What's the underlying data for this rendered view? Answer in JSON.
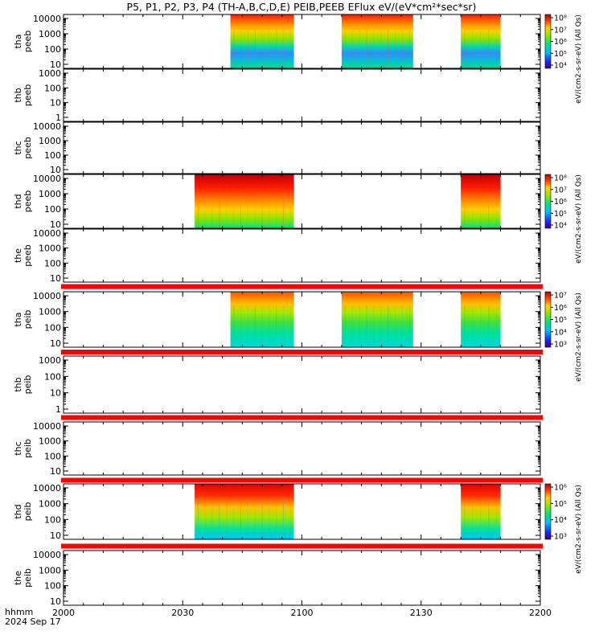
{
  "title": "P5, P1, P2, P3, P4 (TH-A,B,C,D,E) PEIB,PEEB EFlux eV/(eV*cm²*sec*sr)",
  "colors": {
    "background": "#ffffff",
    "axis": "#000000",
    "separator": "#ff0000",
    "spectrum_scale": [
      "#7a0a8a",
      "#1a1aff",
      "#00bfff",
      "#00e08a",
      "#8ae600",
      "#ffd000",
      "#ff7a00",
      "#ff0000",
      "#a40000"
    ]
  },
  "chart_data": {
    "type": "heatmap",
    "x_axis": {
      "label_time": "hhmm",
      "label_date": "2024 Sep 17",
      "range": [
        "2000",
        "2200"
      ],
      "ticks": [
        "2000",
        "2030",
        "2100",
        "2130",
        "2200"
      ]
    },
    "panels": [
      {
        "probe": "tha",
        "product": "peeb",
        "ylabels": [
          "tha",
          "peeb"
        ],
        "yticks": [
          "10",
          "100",
          "1000",
          "10000"
        ],
        "data_intervals": [
          [
            "2042",
            "2058"
          ],
          [
            "2110",
            "2128"
          ],
          [
            "2140",
            "2150"
          ]
        ],
        "colorbar": {
          "ticks": [
            "10⁴",
            "10⁵",
            "10⁶",
            "10⁷",
            "10⁸"
          ],
          "label": "eV/(cm2-s-sr-eV) (All Qs)"
        }
      },
      {
        "probe": "thb",
        "product": "peeb",
        "ylabels": [
          "thb",
          "peeb"
        ],
        "yticks": [
          "1",
          "10",
          "100",
          "1000"
        ],
        "data_intervals": []
      },
      {
        "probe": "thc",
        "product": "peeb",
        "ylabels": [
          "thc",
          "peeb"
        ],
        "yticks": [
          "10",
          "100",
          "1000",
          "10000"
        ],
        "data_intervals": []
      },
      {
        "probe": "thd",
        "product": "peeb",
        "ylabels": [
          "thd",
          "peeb"
        ],
        "yticks": [
          "10",
          "100",
          "1000",
          "10000"
        ],
        "data_intervals": [
          [
            "2033",
            "2058"
          ],
          [
            "2140",
            "2150"
          ]
        ],
        "colorbar": {
          "ticks": [
            "10⁴",
            "10⁵",
            "10⁶",
            "10⁷",
            "10⁸"
          ],
          "label": "eV/(cm2-s-sr-eV) (All Qs)"
        }
      },
      {
        "probe": "the",
        "product": "peeb",
        "ylabels": [
          "the",
          "peeb"
        ],
        "yticks": [
          "10",
          "100",
          "1000",
          "10000"
        ],
        "data_intervals": []
      },
      {
        "probe": "tha",
        "product": "peib",
        "ylabels": [
          "tha",
          "peib"
        ],
        "yticks": [
          "10",
          "100",
          "1000",
          "10000"
        ],
        "data_intervals": [
          [
            "2042",
            "2058"
          ],
          [
            "2110",
            "2128"
          ],
          [
            "2140",
            "2150"
          ]
        ],
        "colorbar": {
          "ticks": [
            "10³",
            "10⁴",
            "10⁵",
            "10⁶",
            "10⁷"
          ],
          "label": "eV/(cm2-s-sr-eV) (All Qs)"
        }
      },
      {
        "probe": "thb",
        "product": "peib",
        "ylabels": [
          "thb",
          "peib"
        ],
        "yticks": [
          "1",
          "10",
          "100",
          "1000"
        ],
        "data_intervals": []
      },
      {
        "probe": "thc",
        "product": "peib",
        "ylabels": [
          "thc",
          "peib"
        ],
        "yticks": [
          "10",
          "100",
          "1000",
          "10000"
        ],
        "data_intervals": []
      },
      {
        "probe": "thd",
        "product": "peib",
        "ylabels": [
          "thd",
          "peib"
        ],
        "yticks": [
          "10",
          "100",
          "1000",
          "10000"
        ],
        "data_intervals": [
          [
            "2033",
            "2058"
          ],
          [
            "2140",
            "2150"
          ]
        ],
        "colorbar": {
          "ticks": [
            "10³",
            "10⁴",
            "10⁵",
            "10⁶"
          ],
          "label": "eV/(cm2-s-sr-eV) (All Qs)"
        }
      },
      {
        "probe": "the",
        "product": "peib",
        "ylabels": [
          "the",
          "peib"
        ],
        "yticks": [
          "10",
          "100",
          "1000",
          "10000"
        ],
        "data_intervals": []
      }
    ]
  }
}
